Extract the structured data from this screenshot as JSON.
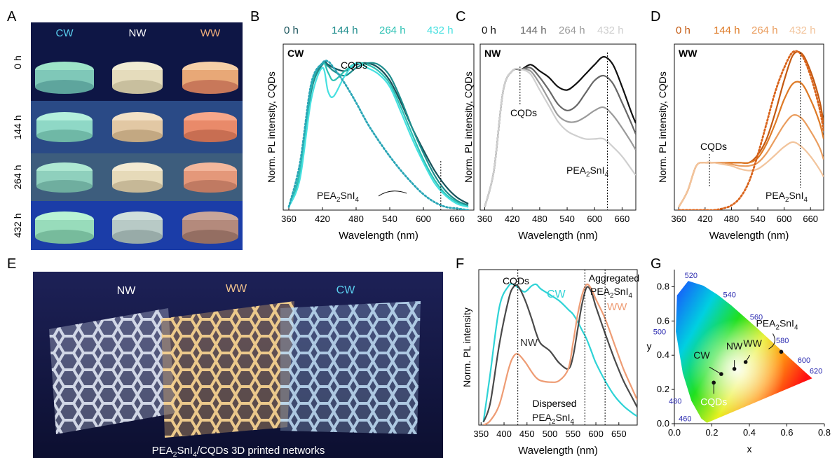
{
  "panel_letters": {
    "A": "A",
    "B": "B",
    "C": "C",
    "D": "D",
    "E": "E",
    "F": "F",
    "G": "G"
  },
  "panel_a": {
    "columns": [
      "CW",
      "NW",
      "WW"
    ],
    "rows": [
      "0 h",
      "144 h",
      "264 h",
      "432 h"
    ]
  },
  "panel_e": {
    "labels": [
      "NW",
      "WW",
      "CW"
    ],
    "caption": "PEA2SnI4/CQDs 3D printed networks"
  },
  "colors": {
    "cw": [
      "#17525a",
      "#1d8c8c",
      "#2ec2b4",
      "#46e0e0"
    ],
    "nw": [
      "#111111",
      "#666666",
      "#9a9a9a",
      "#cfcfcf"
    ],
    "ww": [
      "#c45a12",
      "#de7a26",
      "#ea9d5e",
      "#f2c49c"
    ],
    "f_cw": "#2ed3d6",
    "f_nw": "#4a4a4a",
    "f_ww": "#ee9c74"
  },
  "chart_data": [
    {
      "panel": "B",
      "type": "line",
      "xlabel": "Wavelength (nm)",
      "ylabel": "Norm. PL intensity, CQDs",
      "xlim": [
        350,
        690
      ],
      "ylim": [
        0,
        1.05
      ],
      "xticks": [
        360,
        420,
        480,
        540,
        600,
        660
      ],
      "inset_label": "CW",
      "legend": [
        "0 h",
        "144 h",
        "264 h",
        "432 h"
      ],
      "annotations": {
        "peak1": "CQDs",
        "peak2": "PEA2SnI4",
        "marker_x": 631
      },
      "x": [
        360,
        380,
        400,
        420,
        430,
        440,
        460,
        480,
        500,
        520,
        540,
        560,
        580,
        600,
        620,
        640,
        660,
        680
      ],
      "series": [
        {
          "name": "0 h",
          "values": [
            0.02,
            0.25,
            0.78,
            0.93,
            0.92,
            0.9,
            0.88,
            0.92,
            0.93,
            0.9,
            0.82,
            0.68,
            0.52,
            0.38,
            0.25,
            0.15,
            0.08,
            0.04
          ]
        },
        {
          "name": "144 h",
          "values": [
            0.02,
            0.22,
            0.75,
            0.92,
            0.91,
            0.88,
            0.85,
            0.9,
            0.93,
            0.92,
            0.85,
            0.7,
            0.52,
            0.36,
            0.22,
            0.12,
            0.06,
            0.03
          ]
        },
        {
          "name": "264 h",
          "values": [
            0.02,
            0.25,
            0.78,
            0.93,
            0.87,
            0.82,
            0.88,
            0.93,
            0.92,
            0.88,
            0.8,
            0.65,
            0.48,
            0.32,
            0.19,
            0.1,
            0.05,
            0.02
          ]
        },
        {
          "name": "432 h",
          "values": [
            0.02,
            0.2,
            0.7,
            0.9,
            0.75,
            0.72,
            0.85,
            0.93,
            0.9,
            0.86,
            0.78,
            0.62,
            0.45,
            0.3,
            0.17,
            0.09,
            0.04,
            0.02
          ]
        },
        {
          "name": "CQDs",
          "dotted": true,
          "values": [
            0.02,
            0.3,
            0.8,
            0.93,
            0.94,
            0.9,
            0.8,
            0.68,
            0.55,
            0.44,
            0.34,
            0.25,
            0.17,
            0.1,
            0.05,
            0.02,
            0.01,
            0.0
          ]
        }
      ]
    },
    {
      "panel": "C",
      "type": "line",
      "xlabel": "Wavelength (nm)",
      "ylabel": "Norm. PL intensity, CQDs",
      "xlim": [
        350,
        690
      ],
      "ylim": [
        0,
        1.05
      ],
      "xticks": [
        360,
        420,
        480,
        540,
        600,
        660
      ],
      "inset_label": "NW",
      "legend": [
        "0 h",
        "144 h",
        "264 h",
        "432 h"
      ],
      "annotations": {
        "peak1": "CQDs",
        "peak2": "PEA2SnI4",
        "marker1_x": 437,
        "marker2_x": 628
      },
      "x": [
        360,
        380,
        400,
        420,
        440,
        460,
        480,
        500,
        520,
        540,
        560,
        580,
        600,
        620,
        640,
        660,
        680,
        690
      ],
      "series": [
        {
          "name": "0 h",
          "values": [
            0.02,
            0.25,
            0.75,
            0.88,
            0.89,
            0.92,
            0.88,
            0.84,
            0.78,
            0.76,
            0.8,
            0.86,
            0.92,
            0.97,
            0.92,
            0.78,
            0.62,
            0.55
          ]
        },
        {
          "name": "144 h",
          "values": [
            0.02,
            0.25,
            0.75,
            0.88,
            0.89,
            0.9,
            0.84,
            0.76,
            0.67,
            0.63,
            0.66,
            0.74,
            0.82,
            0.85,
            0.8,
            0.68,
            0.55,
            0.48
          ]
        },
        {
          "name": "264 h",
          "values": [
            0.02,
            0.25,
            0.75,
            0.88,
            0.89,
            0.88,
            0.8,
            0.7,
            0.6,
            0.56,
            0.56,
            0.59,
            0.63,
            0.65,
            0.6,
            0.52,
            0.43,
            0.38
          ]
        },
        {
          "name": "432 h",
          "values": [
            0.02,
            0.25,
            0.75,
            0.88,
            0.89,
            0.86,
            0.76,
            0.66,
            0.56,
            0.5,
            0.47,
            0.45,
            0.45,
            0.45,
            0.4,
            0.34,
            0.26,
            0.22
          ]
        }
      ]
    },
    {
      "panel": "D",
      "type": "line",
      "xlabel": "Wavelength (nm)",
      "ylabel": "Norm. PL intensity, CQDs",
      "xlim": [
        350,
        690
      ],
      "ylim": [
        0,
        1.05
      ],
      "xticks": [
        360,
        420,
        480,
        540,
        600,
        660
      ],
      "inset_label": "WW",
      "legend": [
        "0 h",
        "144 h",
        "264 h",
        "432 h"
      ],
      "annotations": {
        "peak1": "CQDs",
        "peak2": "PEA2SnI4",
        "marker1_x": 430,
        "marker2_x": 637
      },
      "x": [
        360,
        380,
        400,
        420,
        440,
        460,
        480,
        500,
        520,
        540,
        560,
        580,
        600,
        620,
        640,
        660,
        680,
        690
      ],
      "series": [
        {
          "name": "0 h",
          "values": [
            0.02,
            0.12,
            0.28,
            0.3,
            0.3,
            0.3,
            0.3,
            0.3,
            0.3,
            0.35,
            0.45,
            0.62,
            0.82,
            0.98,
            0.99,
            0.88,
            0.7,
            0.55
          ]
        },
        {
          "name": "144 h",
          "values": [
            0.02,
            0.12,
            0.28,
            0.3,
            0.3,
            0.3,
            0.3,
            0.3,
            0.3,
            0.33,
            0.42,
            0.55,
            0.7,
            0.8,
            0.8,
            0.7,
            0.56,
            0.45
          ]
        },
        {
          "name": "264 h",
          "values": [
            0.02,
            0.12,
            0.28,
            0.3,
            0.3,
            0.3,
            0.29,
            0.28,
            0.28,
            0.3,
            0.36,
            0.45,
            0.54,
            0.6,
            0.58,
            0.5,
            0.4,
            0.32
          ]
        },
        {
          "name": "432 h",
          "values": [
            0.02,
            0.12,
            0.28,
            0.3,
            0.3,
            0.29,
            0.28,
            0.26,
            0.25,
            0.26,
            0.3,
            0.35,
            0.4,
            0.43,
            0.4,
            0.34,
            0.26,
            0.21
          ]
        },
        {
          "name": "PEA2SnI4",
          "dotted": true,
          "values": [
            0.0,
            0.0,
            0.0,
            0.0,
            0.0,
            0.01,
            0.03,
            0.08,
            0.18,
            0.35,
            0.55,
            0.75,
            0.9,
            1.0,
            0.98,
            0.85,
            0.65,
            0.5
          ]
        }
      ]
    },
    {
      "panel": "F",
      "type": "line",
      "xlabel": "Wavelength (nm)",
      "ylabel": "Norm. PL intensity",
      "xlim": [
        345,
        690
      ],
      "ylim": [
        0,
        1.05
      ],
      "xticks": [
        350,
        400,
        450,
        500,
        550,
        600,
        650
      ],
      "labels": {
        "cw": "CW",
        "nw": "NW",
        "ww": "WW",
        "cqds": "CQDs",
        "dispersed": "Dispersed",
        "dispersed2": "PEA2SnI4",
        "aggregated": "Aggregated",
        "aggregated2": "PEA2SnI4"
      },
      "markers": [
        430,
        576,
        620
      ],
      "x": [
        355,
        370,
        390,
        410,
        420,
        430,
        445,
        460,
        470,
        480,
        500,
        520,
        540,
        550,
        560,
        570,
        580,
        590,
        600,
        620,
        640,
        660,
        680,
        690
      ],
      "series": [
        {
          "name": "CW",
          "values": [
            0.02,
            0.35,
            0.8,
            0.94,
            0.95,
            0.93,
            0.9,
            0.94,
            0.95,
            0.92,
            0.88,
            0.84,
            0.78,
            0.75,
            0.7,
            0.64,
            0.58,
            0.5,
            0.42,
            0.3,
            0.2,
            0.13,
            0.08,
            0.06
          ]
        },
        {
          "name": "NW",
          "values": [
            0.02,
            0.15,
            0.55,
            0.85,
            0.93,
            0.94,
            0.85,
            0.72,
            0.62,
            0.55,
            0.5,
            0.42,
            0.38,
            0.46,
            0.64,
            0.82,
            0.93,
            0.9,
            0.8,
            0.62,
            0.45,
            0.3,
            0.18,
            0.12
          ]
        },
        {
          "name": "WW",
          "values": [
            0.0,
            0.03,
            0.14,
            0.38,
            0.46,
            0.48,
            0.43,
            0.36,
            0.32,
            0.3,
            0.29,
            0.3,
            0.38,
            0.55,
            0.74,
            0.88,
            0.95,
            0.92,
            0.85,
            0.72,
            0.55,
            0.38,
            0.24,
            0.17
          ]
        }
      ]
    },
    {
      "panel": "G",
      "type": "scatter",
      "xlabel": "x",
      "ylabel": "y",
      "xlim": [
        0,
        0.8
      ],
      "ylim": [
        0,
        0.9
      ],
      "xticks": [
        0.0,
        0.2,
        0.4,
        0.6,
        0.8
      ],
      "yticks": [
        0.0,
        0.2,
        0.4,
        0.6,
        0.8
      ],
      "locus_labels": [
        {
          "nm": "460",
          "x": 0.144,
          "y": 0.03
        },
        {
          "nm": "480",
          "x": 0.091,
          "y": 0.133
        },
        {
          "nm": "500",
          "x": 0.008,
          "y": 0.538
        },
        {
          "nm": "520",
          "x": 0.074,
          "y": 0.834
        },
        {
          "nm": "540",
          "x": 0.23,
          "y": 0.754
        },
        {
          "nm": "560",
          "x": 0.373,
          "y": 0.624
        },
        {
          "nm": "580",
          "x": 0.512,
          "y": 0.487
        },
        {
          "nm": "600",
          "x": 0.627,
          "y": 0.372
        },
        {
          "nm": "620",
          "x": 0.691,
          "y": 0.308
        }
      ],
      "points": [
        {
          "label": "CW",
          "x": 0.25,
          "y": 0.29
        },
        {
          "label": "NW",
          "x": 0.32,
          "y": 0.32
        },
        {
          "label": "WW",
          "x": 0.38,
          "y": 0.36
        },
        {
          "label": "CQDs",
          "x": 0.21,
          "y": 0.24
        },
        {
          "label": "PEA2SnI4",
          "x": 0.57,
          "y": 0.42
        }
      ]
    }
  ]
}
